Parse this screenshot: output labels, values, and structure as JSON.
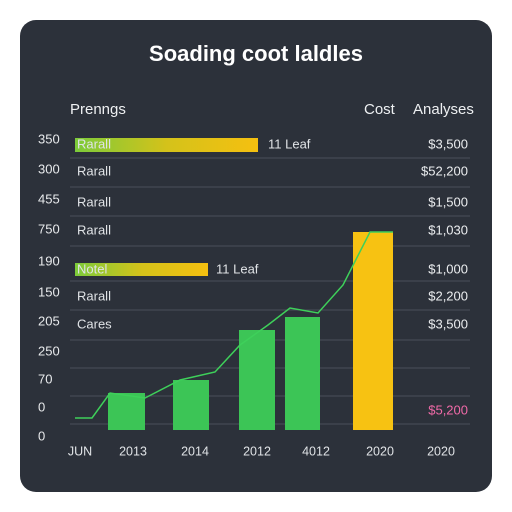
{
  "header": {
    "title": "Soading coot laldles",
    "columns": [
      "Prenngs",
      "Cost",
      "Analyses"
    ]
  },
  "axis_labels": [
    "350",
    "300",
    "455",
    "750",
    "190",
    "150",
    "205",
    "250",
    "70",
    "0",
    "0"
  ],
  "rows": [
    {
      "label": "Rarall",
      "value": "$3,500",
      "note": "11 Leaf"
    },
    {
      "label": "Rarall",
      "value": "$52,200"
    },
    {
      "label": "Rarall",
      "value": "$1,500"
    },
    {
      "label": "Rarall",
      "value": "$1,030"
    },
    {
      "label": "Notel",
      "value": "$1,000",
      "note": "11 Leaf"
    },
    {
      "label": "Rarall",
      "value": "$2,200"
    },
    {
      "label": "Cares",
      "value": "$3,500"
    }
  ],
  "footer_value": "$5,200",
  "x_labels": [
    "JUN",
    "2013",
    "2014",
    "2012",
    "4012",
    "2020",
    "2020"
  ]
}
